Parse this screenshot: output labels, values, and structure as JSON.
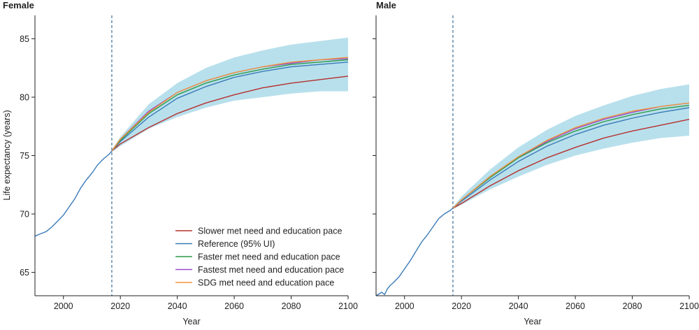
{
  "chart_data": {
    "type": "line",
    "ylabel": "Life expectancy (years)",
    "xlabel": "Year",
    "xlim": [
      1990,
      2100
    ],
    "ylim": [
      63,
      87
    ],
    "xticks": [
      2000,
      2020,
      2040,
      2060,
      2080,
      2100
    ],
    "yticks": [
      65,
      70,
      75,
      80,
      85
    ],
    "forecast_start": 2017,
    "legend": {
      "placement": "bottom-right of left panel",
      "entries": [
        {
          "label": "Slower met need and education pace",
          "color": "#b5302e"
        },
        {
          "label": "Reference (95% UI)",
          "color": "#3a7bb8"
        },
        {
          "label": "Faster met need and education pace",
          "color": "#2e9a4a"
        },
        {
          "label": "Fastest met need and education pace",
          "color": "#9b4dc6"
        },
        {
          "label": "SDG met need and education pace",
          "color": "#f0963a"
        }
      ]
    },
    "band_color": "#b8e0ec",
    "panels": [
      {
        "title": "Female",
        "historical": {
          "x": [
            1990,
            1992,
            1994,
            1996,
            1998,
            2000,
            2002,
            2004,
            2006,
            2008,
            2010,
            2012,
            2014,
            2016,
            2017
          ],
          "y": [
            68.1,
            68.3,
            68.5,
            68.9,
            69.4,
            69.9,
            70.6,
            71.3,
            72.2,
            72.9,
            73.5,
            74.2,
            74.7,
            75.1,
            75.4
          ]
        },
        "reference_ui": {
          "x": [
            2017,
            2020,
            2030,
            2040,
            2050,
            2060,
            2070,
            2080,
            2090,
            2100
          ],
          "lower": [
            75.3,
            75.8,
            77.3,
            78.3,
            79.1,
            79.7,
            80.0,
            80.3,
            80.5,
            80.5
          ],
          "upper": [
            75.5,
            76.6,
            79.4,
            81.2,
            82.5,
            83.4,
            84.0,
            84.5,
            84.8,
            85.1
          ]
        },
        "series": [
          {
            "name": "Slower met need and education pace",
            "x": [
              2017,
              2020,
              2030,
              2040,
              2050,
              2060,
              2070,
              2080,
              2090,
              2100
            ],
            "values": [
              75.4,
              76.0,
              77.4,
              78.6,
              79.5,
              80.2,
              80.8,
              81.2,
              81.5,
              81.8
            ]
          },
          {
            "name": "Reference (95% UI)",
            "x": [
              2017,
              2020,
              2030,
              2040,
              2050,
              2060,
              2070,
              2080,
              2090,
              2100
            ],
            "values": [
              75.4,
              76.2,
              78.3,
              79.9,
              80.9,
              81.7,
              82.2,
              82.6,
              82.8,
              83.0
            ]
          },
          {
            "name": "Faster met need and education pace",
            "x": [
              2017,
              2020,
              2030,
              2040,
              2050,
              2060,
              2070,
              2080,
              2090,
              2100
            ],
            "values": [
              75.4,
              76.3,
              78.6,
              80.2,
              81.2,
              81.9,
              82.4,
              82.8,
              83.0,
              83.2
            ]
          },
          {
            "name": "Fastest met need and education pace",
            "x": [
              2017,
              2020,
              2030,
              2040,
              2050,
              2060,
              2070,
              2080,
              2090,
              2100
            ],
            "values": [
              75.4,
              76.4,
              78.8,
              80.4,
              81.4,
              82.1,
              82.6,
              82.9,
              83.2,
              83.3
            ]
          },
          {
            "name": "SDG met need and education pace",
            "x": [
              2017,
              2020,
              2030,
              2040,
              2050,
              2060,
              2070,
              2080,
              2090,
              2100
            ],
            "values": [
              75.4,
              76.4,
              78.7,
              80.4,
              81.4,
              82.1,
              82.6,
              83.0,
              83.2,
              83.4
            ]
          }
        ]
      },
      {
        "title": "Male",
        "historical": {
          "x": [
            1990,
            1992,
            1993,
            1994,
            1995,
            1996,
            1998,
            2000,
            2002,
            2004,
            2006,
            2008,
            2010,
            2012,
            2014,
            2016,
            2017
          ],
          "y": [
            63.0,
            63.3,
            63.1,
            63.6,
            63.9,
            64.1,
            64.6,
            65.3,
            66.0,
            66.8,
            67.6,
            68.2,
            68.9,
            69.6,
            70.0,
            70.3,
            70.5
          ]
        },
        "reference_ui": {
          "x": [
            2017,
            2020,
            2030,
            2040,
            2050,
            2060,
            2070,
            2080,
            2090,
            2100
          ],
          "lower": [
            70.4,
            70.8,
            72.1,
            73.2,
            74.2,
            75.0,
            75.6,
            76.1,
            76.5,
            76.7
          ],
          "upper": [
            70.6,
            71.5,
            73.8,
            75.7,
            77.2,
            78.4,
            79.3,
            80.1,
            80.7,
            81.1
          ]
        },
        "series": [
          {
            "name": "Slower met need and education pace",
            "x": [
              2017,
              2020,
              2030,
              2040,
              2050,
              2060,
              2070,
              2080,
              2090,
              2100
            ],
            "values": [
              70.5,
              70.9,
              72.4,
              73.7,
              74.8,
              75.7,
              76.5,
              77.1,
              77.6,
              78.1
            ]
          },
          {
            "name": "Reference (95% UI)",
            "x": [
              2017,
              2020,
              2030,
              2040,
              2050,
              2060,
              2070,
              2080,
              2090,
              2100
            ],
            "values": [
              70.5,
              71.1,
              72.9,
              74.5,
              75.8,
              76.8,
              77.6,
              78.2,
              78.7,
              79.1
            ]
          },
          {
            "name": "Faster met need and education pace",
            "x": [
              2017,
              2020,
              2030,
              2040,
              2050,
              2060,
              2070,
              2080,
              2090,
              2100
            ],
            "values": [
              70.5,
              71.2,
              73.1,
              74.8,
              76.1,
              77.1,
              77.9,
              78.5,
              79.0,
              79.3
            ]
          },
          {
            "name": "Fastest met need and education pace",
            "x": [
              2017,
              2020,
              2030,
              2040,
              2050,
              2060,
              2070,
              2080,
              2090,
              2100
            ],
            "values": [
              70.5,
              71.2,
              73.2,
              74.9,
              76.2,
              77.3,
              78.1,
              78.7,
              79.2,
              79.5
            ]
          },
          {
            "name": "SDG met need and education pace",
            "x": [
              2017,
              2020,
              2030,
              2040,
              2050,
              2060,
              2070,
              2080,
              2090,
              2100
            ],
            "values": [
              70.5,
              71.2,
              73.2,
              74.9,
              76.3,
              77.4,
              78.2,
              78.8,
              79.2,
              79.5
            ]
          }
        ]
      }
    ]
  }
}
